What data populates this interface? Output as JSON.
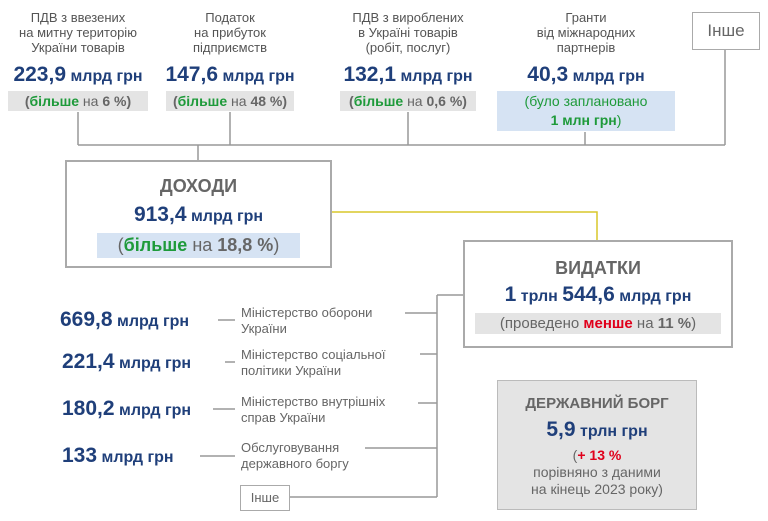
{
  "top_sources": [
    {
      "label": [
        "ПДВ з ввезених",
        "на митну територію",
        "України товарів"
      ],
      "amount": "223,9",
      "unit": "млрд грн",
      "note": [
        "(",
        "більше",
        " на ",
        "6 %",
        ")"
      ]
    },
    {
      "label": [
        "Податок",
        "на прибуток",
        "підприємств"
      ],
      "amount": "147,6",
      "unit": "млрд грн",
      "note": [
        "(",
        "більше",
        " на ",
        "48 %",
        ")"
      ]
    },
    {
      "label": [
        "ПДВ з вироблених",
        "в Україні товарів",
        "(робіт, послуг)"
      ],
      "amount": "132,1",
      "unit": "млрд грн",
      "note": [
        "(",
        "більше",
        " на ",
        "0,6 %",
        ")"
      ]
    },
    {
      "label": [
        "Гранти",
        "від міжнародних",
        "партнерів"
      ],
      "amount": "40,3",
      "unit": "млрд грн",
      "note": [
        "(було заплановано",
        "1 млн грн",
        ")"
      ]
    }
  ],
  "other_top": "Інше",
  "income": {
    "title": "ДОХОДИ",
    "amount": "913,4",
    "unit": "млрд грн",
    "note": [
      "(",
      "більше",
      " на ",
      "18,8 %",
      ")"
    ]
  },
  "expenses": {
    "title": "ВИДАТКИ",
    "amount": [
      "1",
      "трлн",
      "544,6",
      "млрд грн"
    ],
    "note": [
      "(проведено ",
      "менше",
      " на ",
      "11 %",
      ")"
    ]
  },
  "expense_items": [
    {
      "amount": "669,8",
      "unit": "млрд грн",
      "label": [
        "Міністерство оборони",
        "України"
      ]
    },
    {
      "amount": "221,4",
      "unit": "млрд грн",
      "label": [
        "Міністерство соціальної",
        "політики України"
      ]
    },
    {
      "amount": "180,2",
      "unit": "млрд грн",
      "label": [
        "Міністерство внутрішніх",
        "справ України"
      ]
    },
    {
      "amount": "133",
      "unit": "млрд грн",
      "label": [
        "Обслуговування",
        "державного боргу"
      ]
    }
  ],
  "other_bottom": "Інше",
  "debt": {
    "title": "ДЕРЖАВНИЙ БОРГ",
    "amount": "5,9",
    "unit": "трлн грн",
    "note": [
      "(",
      "+ 13 %"
    ],
    "note_lines": [
      "порівняно з даними",
      "на кінець 2023 року)"
    ]
  }
}
